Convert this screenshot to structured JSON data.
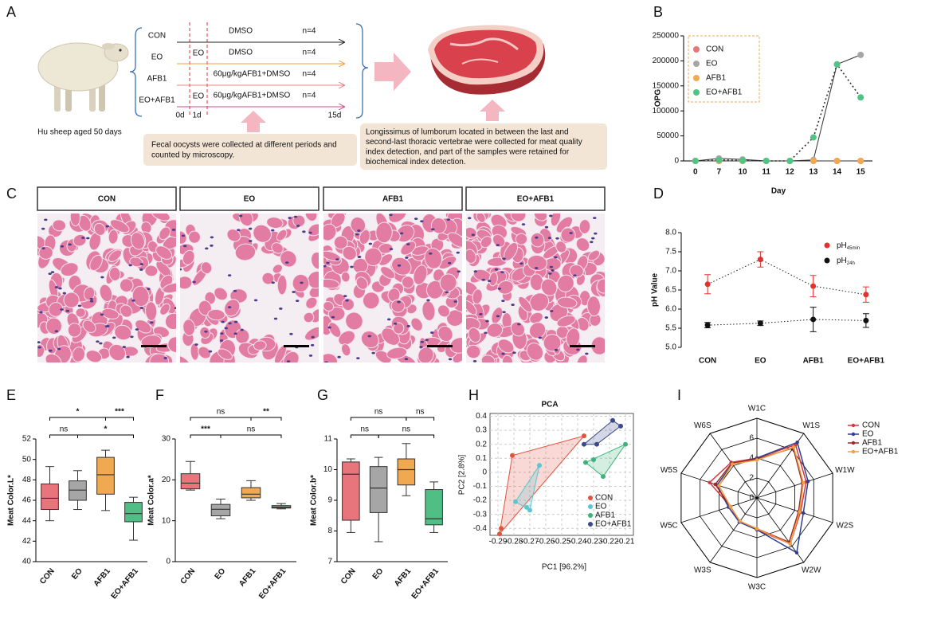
{
  "panel_a": {
    "panel": "A",
    "animal": "Hu sheep aged 50 days",
    "groups": [
      {
        "name": "CON",
        "treatment": "DMSO",
        "n": "n=4"
      },
      {
        "name": "EO",
        "pre": "EO",
        "treatment": "DMSO",
        "n": "n=4"
      },
      {
        "name": "AFB1",
        "treatment": "60μg/kgAFB1+DMSO",
        "n": "n=4"
      },
      {
        "name": "EO+AFB1",
        "pre": "EO",
        "treatment": "60μg/kgAFB1+DMSO",
        "n": "n=4"
      }
    ],
    "days": [
      "0d",
      "1d",
      "15d"
    ],
    "fecal_note": [
      "Fecal oocysts were collected at different periods and",
      "counted by microscopy."
    ],
    "sampling_note": [
      "Longissimus of lumborum located in between the last and",
      "second-last thoracic vertebrae  were collected for meat quality",
      "index detection, and part of the samples were retained for",
      "biochemical index detection."
    ]
  },
  "panel_c": {
    "panel": "C",
    "groups": [
      "CON",
      "EO",
      "AFB1",
      "EO+AFB1"
    ]
  },
  "chart_data": [
    {
      "type": "line",
      "panel": "B",
      "xlabel": "Day",
      "ylabel": "OPG",
      "categories": [
        "0",
        "7",
        "10",
        "11",
        "12",
        "13",
        "14",
        "15"
      ],
      "ylim": [
        0,
        250000
      ],
      "yticks": [
        0,
        50000,
        100000,
        150000,
        200000,
        250000
      ],
      "legend": "upper left",
      "series": [
        {
          "name": "CON",
          "color": "#e8747c",
          "line_color": "#333333",
          "line_style": "solid",
          "values": [
            0,
            0,
            0,
            0,
            0,
            0,
            0,
            0
          ]
        },
        {
          "name": "EO",
          "color": "#a6a6a6",
          "line_color": "#333333",
          "line_style": "solid",
          "values": [
            0,
            5000,
            3000,
            0,
            0,
            2000,
            193000,
            212000
          ]
        },
        {
          "name": "AFB1",
          "color": "#f0a950",
          "line_color": "#333333",
          "line_style": "solid",
          "values": [
            0,
            0,
            0,
            0,
            0,
            0,
            0,
            0
          ]
        },
        {
          "name": "EO+AFB1",
          "color": "#4fc485",
          "line_color": "#333333",
          "line_style": "dotted",
          "values": [
            0,
            2000,
            1000,
            0,
            0,
            47000,
            193000,
            127000
          ]
        }
      ]
    },
    {
      "type": "errorbar",
      "panel": "D",
      "ylabel": "pH Value",
      "categories": [
        "CON",
        "EO",
        "AFB1",
        "EO+AFB1"
      ],
      "ylim": [
        5,
        8
      ],
      "yticks": [
        {
          "value": 5,
          "label": "5.0"
        },
        5.5,
        {
          "value": 6,
          "label": "6.0"
        },
        6.5,
        {
          "value": 7,
          "label": "7.0"
        },
        7.5,
        {
          "value": 8,
          "label": "8.0"
        }
      ],
      "legend": "upper right",
      "line_style": "dotted",
      "series": [
        {
          "name": "pH",
          "subscript": "45min",
          "color": "#e0322f",
          "values": [
            6.65,
            7.3,
            6.6,
            6.38
          ],
          "errors": [
            0.25,
            0.2,
            0.28,
            0.2
          ]
        },
        {
          "name": "pH",
          "subscript": "24h",
          "color": "#111111",
          "values": [
            5.58,
            5.63,
            5.73,
            5.7
          ],
          "errors": [
            0.07,
            0.06,
            0.32,
            0.18
          ]
        }
      ]
    },
    {
      "type": "box",
      "panel": "E",
      "ylabel": "Meat Color.L*",
      "categories": [
        "CON",
        "EO",
        "AFB1",
        "EO+AFB1"
      ],
      "colors": [
        "#e8747c",
        "#a6a6a6",
        "#f0a950",
        "#4fbf85"
      ],
      "ylim": [
        40,
        52
      ],
      "yticks": [
        40,
        42,
        44,
        46,
        48,
        50,
        52
      ],
      "boxes": [
        {
          "min": 44,
          "q1": 45.1,
          "median": 46.2,
          "q3": 47.6,
          "max": 49.3
        },
        {
          "min": 45.1,
          "q1": 46,
          "median": 47,
          "q3": 47.9,
          "max": 48.9
        },
        {
          "min": 45,
          "q1": 46.6,
          "median": 48.5,
          "q3": 50.2,
          "max": 50.9
        },
        {
          "min": 42.1,
          "q1": 43.9,
          "median": 44.7,
          "q3": 45.8,
          "max": 46.3
        }
      ],
      "comparisons": [
        {
          "from": 0,
          "to": 1,
          "label": "ns",
          "level": 0
        },
        {
          "from": 1,
          "to": 3,
          "label": "*",
          "level": 0
        },
        {
          "from": 0,
          "to": 2,
          "label": "*",
          "level": 1
        },
        {
          "from": 2,
          "to": 3,
          "label": "***",
          "level": 1
        }
      ]
    },
    {
      "type": "box",
      "panel": "F",
      "ylabel": "Meat Color.a*",
      "categories": [
        "CON",
        "EO",
        "AFB1",
        "EO+AFB1"
      ],
      "colors": [
        "#e8747c",
        "#a6a6a6",
        "#f0a950",
        "#4fbf85"
      ],
      "ylim": [
        0,
        30
      ],
      "yticks": [
        0,
        10,
        20,
        30
      ],
      "boxes": [
        {
          "min": 17.5,
          "q1": 17.8,
          "median": 19.2,
          "q3": 21.5,
          "max": 24.5
        },
        {
          "min": 10.5,
          "q1": 11.2,
          "median": 12.8,
          "q3": 14,
          "max": 15.3
        },
        {
          "min": 15,
          "q1": 15.6,
          "median": 16.5,
          "q3": 18.1,
          "max": 19.8
        },
        {
          "min": 12.9,
          "q1": 13.1,
          "median": 13.3,
          "q3": 13.7,
          "max": 14.2
        }
      ],
      "comparisons": [
        {
          "from": 0,
          "to": 1,
          "label": "***",
          "level": 0
        },
        {
          "from": 1,
          "to": 3,
          "label": "ns",
          "level": 0
        },
        {
          "from": 0,
          "to": 2,
          "label": "ns",
          "level": 1
        },
        {
          "from": 2,
          "to": 3,
          "label": "**",
          "level": 1
        }
      ]
    },
    {
      "type": "box",
      "panel": "G",
      "ylabel": "Meat Color.b*",
      "categories": [
        "CON",
        "EO",
        "AFB1",
        "EO+AFB1"
      ],
      "colors": [
        "#e8747c",
        "#a6a6a6",
        "#f0a950",
        "#4fbf85"
      ],
      "ylim": [
        7,
        11
      ],
      "yticks": [
        7,
        8,
        9,
        10,
        11
      ],
      "boxes": [
        {
          "min": 7.95,
          "q1": 8.35,
          "median": 9.85,
          "q3": 10.25,
          "max": 10.35
        },
        {
          "min": 7.65,
          "q1": 8.6,
          "median": 9.4,
          "q3": 10.1,
          "max": 10.4
        },
        {
          "min": 9.15,
          "q1": 9.5,
          "median": 10,
          "q3": 10.35,
          "max": 10.85
        },
        {
          "min": 7.95,
          "q1": 8.2,
          "median": 8.4,
          "q3": 9.35,
          "max": 9.6
        }
      ],
      "comparisons": [
        {
          "from": 0,
          "to": 1,
          "label": "ns",
          "level": 0
        },
        {
          "from": 1,
          "to": 3,
          "label": "ns",
          "level": 0
        },
        {
          "from": 0,
          "to": 2,
          "label": "ns",
          "level": 1
        },
        {
          "from": 2,
          "to": 3,
          "label": "ns",
          "level": 1
        }
      ]
    },
    {
      "type": "scatter",
      "panel": "H",
      "title": "PCA",
      "xlabel": "PC1 [96.2%]",
      "ylabel": "PC2 [2.8%]",
      "xlim": [
        -0.295,
        -0.205
      ],
      "xticks": [
        -0.29,
        -0.28,
        -0.27,
        -0.26,
        -0.25,
        -0.24,
        -0.23,
        -0.22,
        -0.21
      ],
      "ylim": [
        -0.45,
        0.42
      ],
      "yticks": [
        -0.4,
        -0.3,
        -0.2,
        -0.1,
        0,
        0.1,
        0.2,
        0.3,
        0.4
      ],
      "grid": true,
      "legend": "lower right",
      "series": [
        {
          "name": "CON",
          "color": "#e0533f",
          "x": [
            -0.289,
            -0.288,
            -0.281,
            -0.236
          ],
          "y": [
            -0.44,
            -0.4,
            0.12,
            0.26
          ]
        },
        {
          "name": "EO",
          "color": "#5cc6d0",
          "x": [
            -0.279,
            -0.272,
            -0.27,
            -0.264
          ],
          "y": [
            -0.21,
            -0.25,
            -0.27,
            0.05
          ]
        },
        {
          "name": "AFB1",
          "color": "#3cb37a",
          "x": [
            -0.235,
            -0.23,
            -0.224,
            -0.21
          ],
          "y": [
            0.07,
            0.09,
            -0.03,
            0.2
          ]
        },
        {
          "name": "EO+AFB1",
          "color": "#3c4a8a",
          "x": [
            -0.236,
            -0.228,
            -0.218,
            -0.213
          ],
          "y": [
            0.2,
            0.2,
            0.37,
            0.33
          ]
        }
      ]
    },
    {
      "type": "radar",
      "panel": "I",
      "axes": [
        "W1C",
        "W1S",
        "W1W",
        "W2S",
        "W2W",
        "W3C",
        "W3S",
        "W5C",
        "W5S",
        "W6S"
      ],
      "rlim": [
        0,
        8
      ],
      "rticks": [
        0,
        2,
        4,
        6
      ],
      "legend": "upper right",
      "series": [
        {
          "name": "CON",
          "color": "#d6373f",
          "values": [
            4,
            6.6,
            5.2,
            4.6,
            5.7,
            3.2,
            3,
            2.8,
            5,
            4.4
          ]
        },
        {
          "name": "EO",
          "color": "#2e3f8f",
          "values": [
            4,
            6.9,
            5.4,
            4.9,
            6.8,
            3.2,
            3,
            3,
            4.2,
            4.2
          ]
        },
        {
          "name": "AFB1",
          "color": "#9b2a2a",
          "values": [
            3.9,
            6.2,
            4.8,
            4.4,
            5.5,
            3.1,
            2.9,
            2.8,
            4.4,
            4.3
          ]
        },
        {
          "name": "EO+AFB1",
          "color": "#f0a040",
          "values": [
            3.8,
            6.3,
            4.9,
            4.5,
            5.7,
            3.1,
            2.9,
            2.8,
            4,
            4.2
          ]
        }
      ]
    }
  ]
}
